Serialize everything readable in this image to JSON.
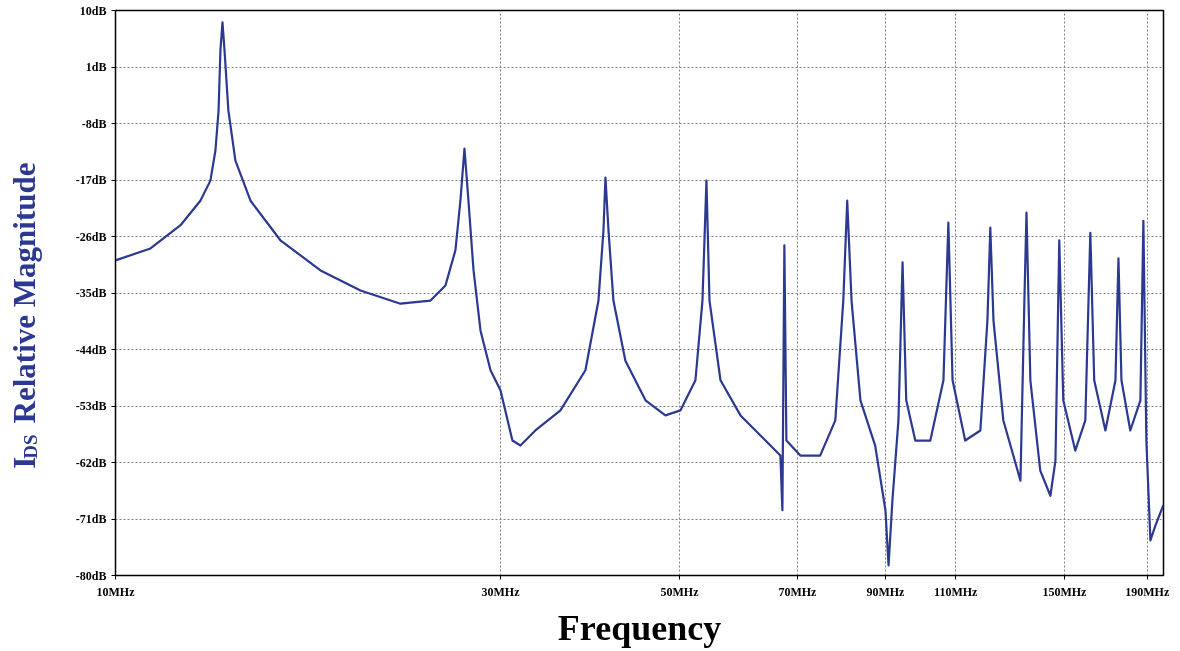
{
  "chart_data": {
    "type": "line",
    "xlabel": "Frequency",
    "ylabel": "I$_{DS}$ Relative Magnitude",
    "log": "x",
    "grid": true,
    "xlim": [
      10,
      199
    ],
    "ylim": [
      -80,
      10
    ],
    "xticks": [
      {
        "value": 10,
        "label": "10MHz"
      },
      {
        "value": 30,
        "label": "30MHz"
      },
      {
        "value": 50,
        "label": "50MHz"
      },
      {
        "value": 70,
        "label": "70MHz"
      },
      {
        "value": 90,
        "label": "90MHz"
      },
      {
        "value": 110,
        "label": "110MHz"
      },
      {
        "value": 150,
        "label": "150MHz"
      },
      {
        "value": 190,
        "label": "190MHz"
      }
    ],
    "yticks": [
      {
        "value": -80,
        "label": "-80dB"
      },
      {
        "value": -71,
        "label": "-71dB"
      },
      {
        "value": -62,
        "label": "-62dB"
      },
      {
        "value": -53,
        "label": "-53dB"
      },
      {
        "value": -44,
        "label": "-44dB"
      },
      {
        "value": -35,
        "label": "-35dB"
      },
      {
        "value": -26,
        "label": "-26dB"
      },
      {
        "value": -17,
        "label": "-17dB"
      },
      {
        "value": -8,
        "label": "-8dB"
      },
      {
        "value": 1,
        "label": "1dB"
      },
      {
        "value": 10,
        "label": "10dB"
      }
    ],
    "x": [
      10.0,
      11.05,
      12.04,
      12.74,
      13.11,
      13.3,
      13.42,
      13.49,
      13.57,
      13.65,
      13.8,
      14.08,
      14.7,
      16.01,
      17.95,
      20.12,
      22.55,
      24.57,
      25.64,
      26.38,
      26.76,
      27.07,
      27.38,
      27.78,
      28.34,
      29.16,
      30.0,
      31.04,
      31.76,
      33.14,
      35.6,
      38.23,
      39.68,
      40.25,
      40.48,
      40.83,
      41.41,
      42.85,
      45.38,
      48.03,
      50.13,
      52.33,
      53.39,
      54.0,
      54.47,
      56.21,
      59.51,
      63.91,
      66.69,
      67.07,
      67.45,
      67.84,
      70.6,
      74.7,
      78.0,
      79.8,
      80.7,
      81.7,
      83.8,
      87.4,
      90.0,
      90.8,
      91.8,
      93.4,
      94.5,
      95.5,
      98.0,
      102.3,
      106.2,
      107.7,
      109.0,
      113.0,
      118.0,
      120.4,
      121.4,
      122.5,
      126.0,
      132.3,
      133.8,
      134.6,
      136.1,
      140.0,
      144.1,
      146.2,
      147.8,
      149.5,
      154.7,
      159.2,
      161.5,
      163.3,
      168.6,
      173.5,
      175.0,
      176.5,
      181.0,
      186.3,
      187.9,
      189.5,
      191.7,
      194.5,
      198.9
    ],
    "series": [
      {
        "color": "#2b3990",
        "values": [
          -29.8,
          -27.9,
          -24.2,
          -20.3,
          -17.1,
          -12.3,
          -5.9,
          3.6,
          8.1,
          3.6,
          -5.9,
          -13.9,
          -20.3,
          -26.6,
          -31.4,
          -34.6,
          -36.7,
          -36.2,
          -33.8,
          -28.2,
          -20.3,
          -12.0,
          -20.3,
          -31.4,
          -41.0,
          -47.3,
          -50.5,
          -58.5,
          -59.3,
          -56.9,
          -53.7,
          -47.3,
          -36.2,
          -25.0,
          -16.6,
          -25.0,
          -36.2,
          -45.8,
          -52.1,
          -54.5,
          -53.7,
          -48.9,
          -36.2,
          -17.1,
          -36.2,
          -48.9,
          -54.5,
          -58.5,
          -60.9,
          -69.6,
          -27.4,
          -58.5,
          -60.9,
          -60.9,
          -55.3,
          -36.2,
          -20.3,
          -36.2,
          -52.1,
          -59.3,
          -69.6,
          -78.4,
          -68.1,
          -55.3,
          -30.1,
          -52.1,
          -58.5,
          -58.5,
          -48.9,
          -23.8,
          -48.9,
          -58.5,
          -56.9,
          -39.4,
          -24.6,
          -39.4,
          -55.3,
          -64.9,
          -36.2,
          -22.2,
          -48.9,
          -63.3,
          -67.3,
          -61.7,
          -26.6,
          -52.1,
          -60.1,
          -55.3,
          -25.4,
          -48.9,
          -56.9,
          -48.9,
          -29.5,
          -48.9,
          -56.9,
          -52.1,
          -23.5,
          -58.5,
          -74.4,
          -72.0,
          -68.8
        ]
      }
    ]
  }
}
